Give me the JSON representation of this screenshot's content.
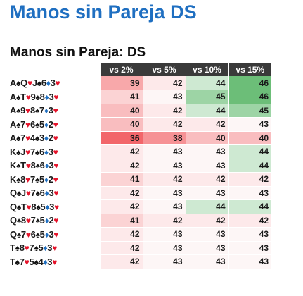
{
  "title": "Manos sin Pareja DS",
  "subtitle": "Manos sin Pareja: DS",
  "columns": [
    "vs 2%",
    "vs 5%",
    "vs 10%",
    "vs 15%"
  ],
  "colors": {
    "title": "#1f6fc1",
    "header_bg": "#3a3a3a",
    "heart": "#e5142b",
    "diamond": "#1f6fc1",
    "spade": "#111111"
  },
  "rows": [
    {
      "hand": [
        {
          "r": "A",
          "s": "♠"
        },
        {
          "r": "Q",
          "s": "♥"
        },
        {
          "r": "J",
          "s": "♠"
        },
        {
          "r": "6",
          "s": "♦"
        },
        {
          "r": "3",
          "s": "♥"
        }
      ],
      "values": [
        39,
        42,
        44,
        46
      ]
    },
    {
      "hand": [
        {
          "r": "A",
          "s": "♠"
        },
        {
          "r": "T",
          "s": "♥"
        },
        {
          "r": "9",
          "s": "♠"
        },
        {
          "r": "8",
          "s": "♦"
        },
        {
          "r": "3",
          "s": "♥"
        }
      ],
      "values": [
        41,
        43,
        45,
        46
      ]
    },
    {
      "hand": [
        {
          "r": "A",
          "s": "♠"
        },
        {
          "r": "9",
          "s": "♥"
        },
        {
          "r": "8",
          "s": "♠"
        },
        {
          "r": "7",
          "s": "♦"
        },
        {
          "r": "3",
          "s": "♥"
        }
      ],
      "values": [
        40,
        42,
        44,
        45
      ]
    },
    {
      "hand": [
        {
          "r": "A",
          "s": "♠"
        },
        {
          "r": "7",
          "s": "♥"
        },
        {
          "r": "6",
          "s": "♠"
        },
        {
          "r": "5",
          "s": "♦"
        },
        {
          "r": "2",
          "s": "♥"
        }
      ],
      "values": [
        40,
        42,
        42,
        43
      ]
    },
    {
      "hand": [
        {
          "r": "A",
          "s": "♠"
        },
        {
          "r": "7",
          "s": "♥"
        },
        {
          "r": "4",
          "s": "♠"
        },
        {
          "r": "3",
          "s": "♦"
        },
        {
          "r": "2",
          "s": "♥"
        }
      ],
      "values": [
        36,
        38,
        40,
        40
      ]
    },
    {
      "hand": [
        {
          "r": "K",
          "s": "♠"
        },
        {
          "r": "J",
          "s": "♥"
        },
        {
          "r": "7",
          "s": "♠"
        },
        {
          "r": "6",
          "s": "♦"
        },
        {
          "r": "3",
          "s": "♥"
        }
      ],
      "values": [
        42,
        43,
        43,
        44
      ]
    },
    {
      "hand": [
        {
          "r": "K",
          "s": "♠"
        },
        {
          "r": "T",
          "s": "♥"
        },
        {
          "r": "8",
          "s": "♠"
        },
        {
          "r": "6",
          "s": "♦"
        },
        {
          "r": "3",
          "s": "♥"
        }
      ],
      "values": [
        42,
        43,
        43,
        44
      ]
    },
    {
      "hand": [
        {
          "r": "K",
          "s": "♠"
        },
        {
          "r": "8",
          "s": "♥"
        },
        {
          "r": "7",
          "s": "♠"
        },
        {
          "r": "5",
          "s": "♦"
        },
        {
          "r": "2",
          "s": "♥"
        }
      ],
      "values": [
        41,
        42,
        42,
        42
      ]
    },
    {
      "hand": [
        {
          "r": "Q",
          "s": "♠"
        },
        {
          "r": "J",
          "s": "♥"
        },
        {
          "r": "7",
          "s": "♠"
        },
        {
          "r": "6",
          "s": "♦"
        },
        {
          "r": "3",
          "s": "♥"
        }
      ],
      "values": [
        42,
        43,
        43,
        43
      ]
    },
    {
      "hand": [
        {
          "r": "Q",
          "s": "♠"
        },
        {
          "r": "T",
          "s": "♥"
        },
        {
          "r": "8",
          "s": "♠"
        },
        {
          "r": "5",
          "s": "♦"
        },
        {
          "r": "3",
          "s": "♥"
        }
      ],
      "values": [
        42,
        43,
        44,
        44
      ]
    },
    {
      "hand": [
        {
          "r": "Q",
          "s": "♠"
        },
        {
          "r": "8",
          "s": "♥"
        },
        {
          "r": "7",
          "s": "♠"
        },
        {
          "r": "5",
          "s": "♦"
        },
        {
          "r": "2",
          "s": "♥"
        }
      ],
      "values": [
        41,
        42,
        42,
        42
      ]
    },
    {
      "hand": [
        {
          "r": "Q",
          "s": "♠"
        },
        {
          "r": "7",
          "s": "♥"
        },
        {
          "r": "6",
          "s": "♠"
        },
        {
          "r": "5",
          "s": "♦"
        },
        {
          "r": "3",
          "s": "♥"
        }
      ],
      "values": [
        42,
        43,
        43,
        43
      ]
    },
    {
      "hand": [
        {
          "r": "T",
          "s": "♠"
        },
        {
          "r": "8",
          "s": "♥"
        },
        {
          "r": "7",
          "s": "♠"
        },
        {
          "r": "5",
          "s": "♦"
        },
        {
          "r": "3",
          "s": "♥"
        }
      ],
      "values": [
        42,
        43,
        43,
        43
      ]
    },
    {
      "hand": [
        {
          "r": "T",
          "s": "♠"
        },
        {
          "r": "7",
          "s": "♥"
        },
        {
          "r": "5",
          "s": "♠"
        },
        {
          "r": "4",
          "s": "♦"
        },
        {
          "r": "3",
          "s": "♥"
        }
      ],
      "values": [
        42,
        43,
        43,
        43
      ]
    }
  ]
}
